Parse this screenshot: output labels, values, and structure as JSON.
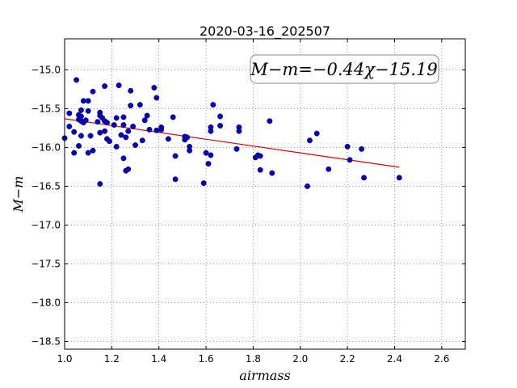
{
  "chart_data": {
    "type": "scatter",
    "title": "2020-03-16_202507",
    "xlabel": "airmass",
    "ylabel": "M−m",
    "xlim": [
      1.0,
      2.7
    ],
    "ylim": [
      -14.6,
      -18.6
    ],
    "y_inverted": true,
    "grid": true,
    "grid_style": "dotted",
    "x_ticks": [
      1.0,
      1.2,
      1.4,
      1.6,
      1.8,
      2.0,
      2.2,
      2.4,
      2.6
    ],
    "x_tick_labels": [
      "1.0",
      "1.2",
      "1.4",
      "1.6",
      "1.8",
      "2.0",
      "2.2",
      "2.4",
      "2.6"
    ],
    "y_ticks": [
      -15.0,
      -15.5,
      -16.0,
      -16.5,
      -17.0,
      -17.5,
      -18.0,
      -18.5
    ],
    "y_tick_labels": [
      "−15.0",
      "−15.5",
      "−16.0",
      "−16.5",
      "−17.0",
      "−17.5",
      "−18.0",
      "−18.5"
    ],
    "annotation": "M−m=−0.44χ−15.19",
    "annotation_position": "top-right",
    "series": [
      {
        "kind": "scatter",
        "color": "#0000cc",
        "points": [
          [
            1.0,
            -15.88
          ],
          [
            1.02,
            -15.56
          ],
          [
            1.02,
            -15.73
          ],
          [
            1.04,
            -15.8
          ],
          [
            1.04,
            -16.07
          ],
          [
            1.05,
            -15.13
          ],
          [
            1.06,
            -15.58
          ],
          [
            1.06,
            -15.64
          ],
          [
            1.06,
            -15.98
          ],
          [
            1.07,
            -15.52
          ],
          [
            1.07,
            -15.6
          ],
          [
            1.07,
            -15.66
          ],
          [
            1.07,
            -15.85
          ],
          [
            1.08,
            -15.4
          ],
          [
            1.08,
            -15.68
          ],
          [
            1.09,
            -15.65
          ],
          [
            1.1,
            -15.4
          ],
          [
            1.1,
            -15.53
          ],
          [
            1.1,
            -16.07
          ],
          [
            1.11,
            -15.85
          ],
          [
            1.12,
            -15.28
          ],
          [
            1.12,
            -16.04
          ],
          [
            1.14,
            -15.67
          ],
          [
            1.15,
            -15.55
          ],
          [
            1.15,
            -15.59
          ],
          [
            1.15,
            -15.81
          ],
          [
            1.15,
            -16.47
          ],
          [
            1.16,
            -15.62
          ],
          [
            1.17,
            -15.21
          ],
          [
            1.17,
            -15.66
          ],
          [
            1.17,
            -15.79
          ],
          [
            1.18,
            -15.68
          ],
          [
            1.18,
            -15.89
          ],
          [
            1.19,
            -15.92
          ],
          [
            1.21,
            -15.71
          ],
          [
            1.22,
            -15.62
          ],
          [
            1.22,
            -15.99
          ],
          [
            1.23,
            -15.2
          ],
          [
            1.24,
            -15.84
          ],
          [
            1.25,
            -15.61
          ],
          [
            1.25,
            -15.71
          ],
          [
            1.25,
            -16.14
          ],
          [
            1.26,
            -15.87
          ],
          [
            1.26,
            -16.3
          ],
          [
            1.27,
            -15.79
          ],
          [
            1.27,
            -16.28
          ],
          [
            1.28,
            -15.27
          ],
          [
            1.28,
            -15.46
          ],
          [
            1.29,
            -15.73
          ],
          [
            1.3,
            -15.97
          ],
          [
            1.32,
            -15.45
          ],
          [
            1.33,
            -15.91
          ],
          [
            1.34,
            -15.65
          ],
          [
            1.35,
            -15.59
          ],
          [
            1.36,
            -15.77
          ],
          [
            1.38,
            -15.23
          ],
          [
            1.39,
            -15.36
          ],
          [
            1.39,
            -15.78
          ],
          [
            1.41,
            -15.74
          ],
          [
            1.41,
            -15.77
          ],
          [
            1.44,
            -15.89
          ],
          [
            1.46,
            -15.61
          ],
          [
            1.47,
            -16.11
          ],
          [
            1.47,
            -16.41
          ],
          [
            1.51,
            -15.86
          ],
          [
            1.51,
            -15.9
          ],
          [
            1.52,
            -15.87
          ],
          [
            1.53,
            -15.99
          ],
          [
            1.53,
            -16.04
          ],
          [
            1.59,
            -16.46
          ],
          [
            1.6,
            -16.07
          ],
          [
            1.61,
            -16.21
          ],
          [
            1.62,
            -15.74
          ],
          [
            1.62,
            -15.79
          ],
          [
            1.62,
            -16.1
          ],
          [
            1.63,
            -15.45
          ],
          [
            1.66,
            -15.6
          ],
          [
            1.66,
            -15.72
          ],
          [
            1.73,
            -16.02
          ],
          [
            1.74,
            -15.74
          ],
          [
            1.74,
            -15.79
          ],
          [
            1.81,
            -16.13
          ],
          [
            1.82,
            -16.1
          ],
          [
            1.83,
            -16.11
          ],
          [
            1.83,
            -16.29
          ],
          [
            1.87,
            -15.66
          ],
          [
            1.88,
            -16.33
          ],
          [
            2.03,
            -16.5
          ],
          [
            2.04,
            -15.91
          ],
          [
            2.07,
            -15.82
          ],
          [
            2.12,
            -16.28
          ],
          [
            2.2,
            -15.99
          ],
          [
            2.21,
            -16.16
          ],
          [
            2.26,
            -16.02
          ],
          [
            2.27,
            -16.39
          ],
          [
            2.42,
            -16.39
          ]
        ]
      },
      {
        "kind": "fit_line",
        "color": "#dd0000",
        "slope": -0.44,
        "intercept": -15.19,
        "x_range": [
          1.0,
          2.42
        ]
      }
    ]
  }
}
